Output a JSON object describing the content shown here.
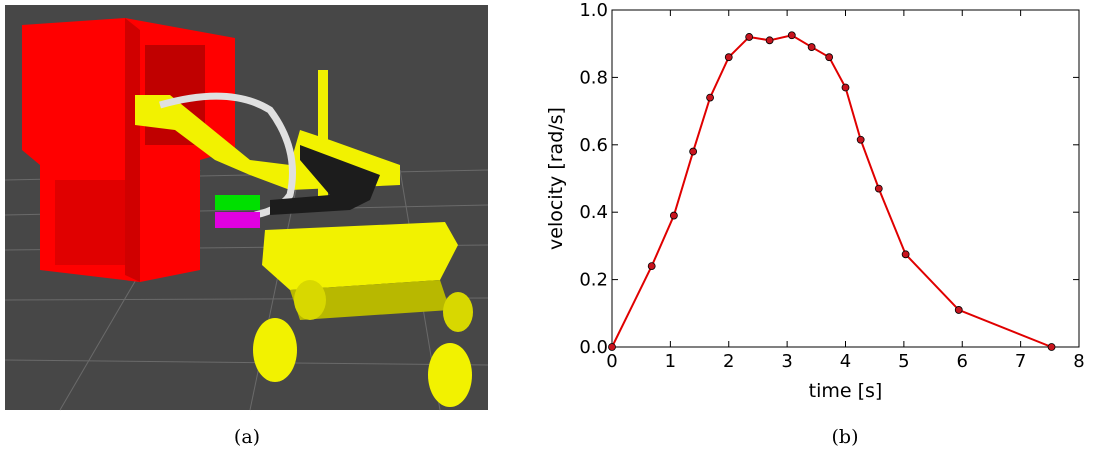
{
  "chart_data": {
    "type": "line",
    "x": [
      0,
      0.68,
      1.06,
      1.39,
      1.68,
      2.0,
      2.35,
      2.7,
      3.08,
      3.42,
      3.72,
      4.0,
      4.26,
      4.57,
      5.03,
      5.94,
      7.53
    ],
    "values": [
      0,
      0.24,
      0.39,
      0.58,
      0.74,
      0.86,
      0.92,
      0.91,
      0.925,
      0.89,
      0.86,
      0.77,
      0.615,
      0.47,
      0.275,
      0.11,
      0
    ],
    "color": "#e00000",
    "marker_color": "#c8141e",
    "xlabel": "time [s]",
    "ylabel": "velocity [rad/s]",
    "xlim": [
      0,
      8
    ],
    "ylim": [
      0,
      1
    ],
    "xticks": [
      0,
      1,
      2,
      3,
      4,
      5,
      6,
      7,
      8
    ],
    "yticks": [
      {
        "value": 0,
        "label": "0.0"
      },
      0.2,
      0.4,
      0.6,
      0.8,
      {
        "value": 1,
        "label": "1.0"
      }
    ],
    "grid": false
  },
  "captions": [
    "(a)",
    "(b)"
  ]
}
